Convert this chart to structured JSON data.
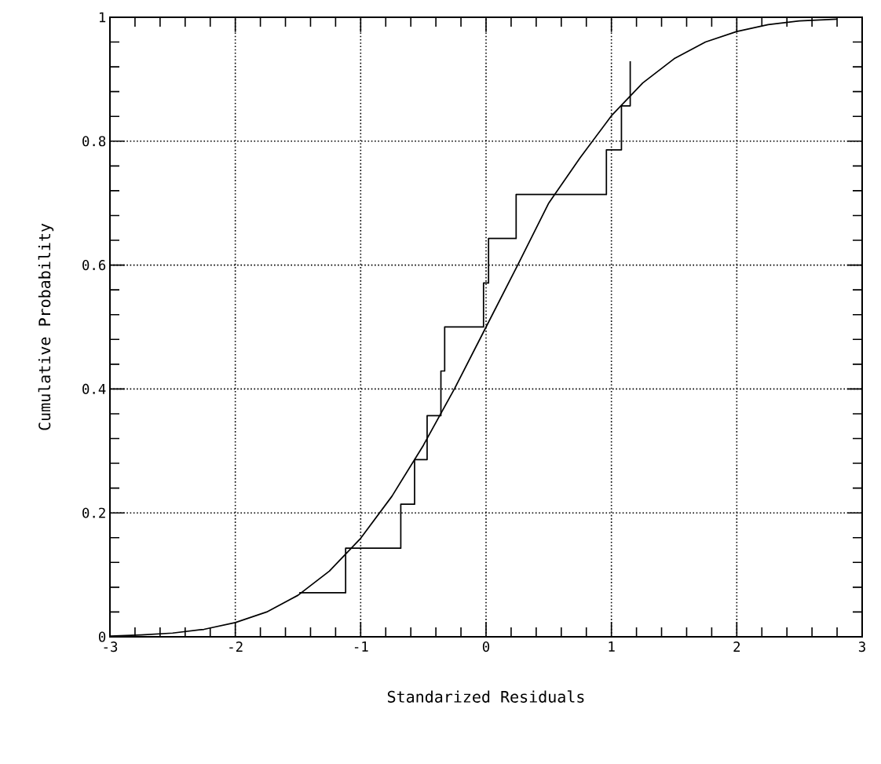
{
  "chart_data": {
    "type": "line",
    "xlabel": "Standarized Residuals",
    "ylabel": "Cumulative Probability",
    "xlim": [
      -3,
      3
    ],
    "ylim": [
      0,
      1
    ],
    "xticks": [
      -3,
      -2,
      -1,
      0,
      1,
      2,
      3
    ],
    "yticks": [
      0,
      0.2,
      0.4,
      0.6,
      0.8,
      1
    ],
    "grid": true,
    "series": [
      {
        "type": "step",
        "color": "#000000",
        "x": [
          -1.49,
          -1.12,
          -0.68,
          -0.57,
          -0.47,
          -0.36,
          -0.33,
          -0.02,
          0.02,
          0.24,
          0.96,
          1.08,
          1.15
        ],
        "values": [
          0.071,
          0.143,
          0.214,
          0.286,
          0.357,
          0.429,
          0.5,
          0.571,
          0.643,
          0.714,
          0.786,
          0.857,
          0.929
        ]
      },
      {
        "color": "#000000",
        "x": [
          -3,
          -2.75,
          -2.5,
          -2.25,
          -2,
          -1.75,
          -1.5,
          -1.25,
          -1,
          -0.75,
          -0.5,
          -0.25,
          0,
          0.25,
          0.5,
          0.75,
          1,
          1.25,
          1.5,
          1.75,
          2,
          2.25,
          2.5,
          2.8
        ],
        "values": [
          0.001,
          0.003,
          0.006,
          0.012,
          0.023,
          0.04,
          0.067,
          0.106,
          0.159,
          0.227,
          0.309,
          0.401,
          0.5,
          0.599,
          0.7,
          0.773,
          0.841,
          0.894,
          0.933,
          0.96,
          0.977,
          0.988,
          0.994,
          0.997
        ]
      }
    ]
  }
}
